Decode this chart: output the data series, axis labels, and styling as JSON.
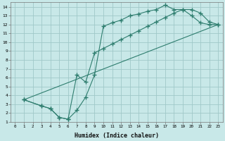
{
  "xlabel": "Humidex (Indice chaleur)",
  "background_color": "#c8e8e8",
  "grid_color": "#a0c8c8",
  "line_color": "#2e7d6e",
  "xlim": [
    -0.5,
    23.5
  ],
  "ylim": [
    1,
    14.5
  ],
  "xticks": [
    0,
    1,
    2,
    3,
    4,
    5,
    6,
    7,
    8,
    9,
    10,
    11,
    12,
    13,
    14,
    15,
    16,
    17,
    18,
    19,
    20,
    21,
    22,
    23
  ],
  "yticks": [
    1,
    2,
    3,
    4,
    5,
    6,
    7,
    8,
    9,
    10,
    11,
    12,
    13,
    14
  ],
  "line1_x": [
    1,
    3,
    4,
    5,
    6,
    7,
    8,
    9,
    10,
    11,
    12,
    13,
    14,
    15,
    16,
    17,
    18,
    19,
    20,
    21,
    22,
    23
  ],
  "line1_y": [
    3.5,
    2.8,
    2.5,
    1.5,
    1.3,
    2.3,
    3.8,
    6.3,
    11.8,
    12.2,
    12.5,
    13.0,
    13.2,
    13.5,
    13.7,
    14.2,
    13.7,
    13.7,
    13.0,
    12.2,
    12.0,
    12.0
  ],
  "line2_x": [
    1,
    3,
    4,
    5,
    6,
    7,
    8,
    9,
    10,
    11,
    12,
    13,
    14,
    15,
    16,
    17,
    18,
    19,
    20,
    21,
    22,
    23
  ],
  "line2_y": [
    3.5,
    2.8,
    2.5,
    1.5,
    1.3,
    6.3,
    5.5,
    8.8,
    9.3,
    9.8,
    10.3,
    10.8,
    11.3,
    11.8,
    12.3,
    12.8,
    13.3,
    13.7,
    13.7,
    13.3,
    12.3,
    12.0
  ],
  "line3_x": [
    1,
    23
  ],
  "line3_y": [
    3.5,
    12.0
  ]
}
